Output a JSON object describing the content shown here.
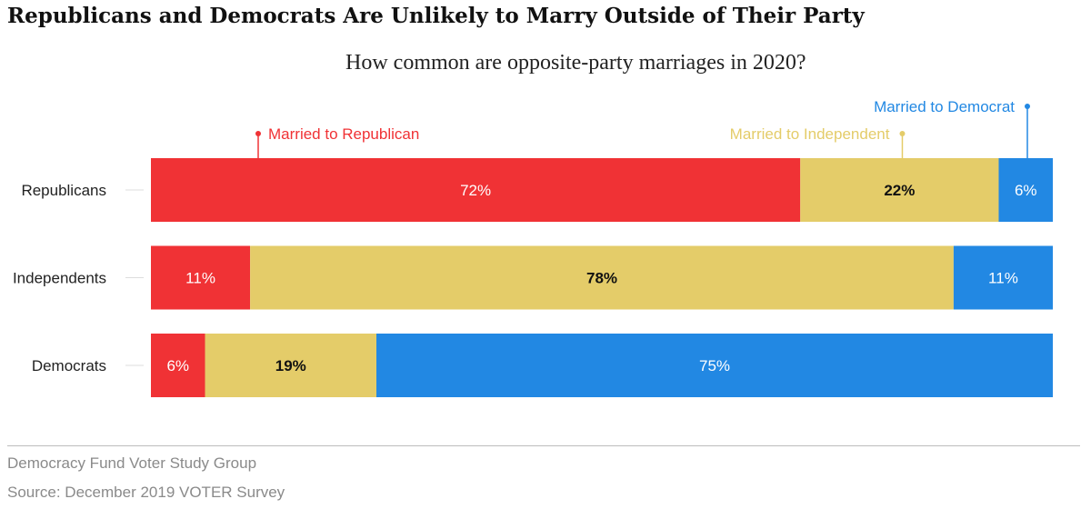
{
  "title": "Republicans and Democrats Are Unlikely to Marry Outside of Their Party",
  "subtitle": "How common are opposite-party marriages in 2020?",
  "footer": {
    "source_org": "Democracy Fund Voter Study Group",
    "source_survey": "Source: December 2019 VOTER Survey"
  },
  "colors": {
    "republican": "#f03235",
    "independent": "#e4cc69",
    "democrat": "#2288e3"
  },
  "chart_data": {
    "type": "bar",
    "orientation": "horizontal",
    "stacked": true,
    "categories": [
      "Republicans",
      "Independents",
      "Democrats"
    ],
    "series": [
      {
        "name": "Married to Republican",
        "values": [
          72,
          11,
          6
        ],
        "color": "#f03235",
        "label_color": "#ffffff"
      },
      {
        "name": "Married to Independent",
        "values": [
          22,
          78,
          19
        ],
        "color": "#e4cc69",
        "label_color": "#111111"
      },
      {
        "name": "Married to Democrat",
        "values": [
          6,
          11,
          75
        ],
        "color": "#2288e3",
        "label_color": "#ffffff"
      }
    ],
    "value_suffix": "%",
    "xlim": [
      0,
      100
    ],
    "grid": false,
    "legend": "annotations above first bar"
  }
}
